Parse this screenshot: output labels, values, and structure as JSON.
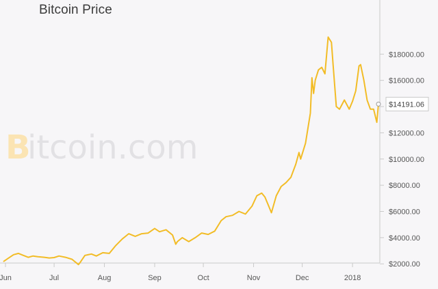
{
  "title": "Bitcoin Price",
  "watermark": {
    "symbol": "B",
    "text": "itcoin.com"
  },
  "colors": {
    "background": "#f7f6f8",
    "line": "#f2bc26",
    "axis": "#c9c9c9",
    "watermark": "#e2e1e4",
    "watermark_symbol": "#fbe4b3"
  },
  "price_tag": "$14191.06",
  "chart_data": {
    "type": "line",
    "title": "Bitcoin Price",
    "xlabel": "",
    "ylabel": "",
    "x_tick_labels": [
      "Jun",
      "Jul",
      "Aug",
      "Sep",
      "Oct",
      "Nov",
      "Dec",
      "2018"
    ],
    "y_tick_labels": [
      "$2000.00",
      "$4000.00",
      "$6000.00",
      "$8000.00",
      "$10000.00",
      "$12000.00",
      "$14000.00",
      "$16000.00",
      "$18000.00"
    ],
    "y_ticks": [
      2000,
      4000,
      6000,
      8000,
      10000,
      12000,
      14000,
      16000,
      18000
    ],
    "x_range": [
      "2017-06-01",
      "2018-01-17"
    ],
    "ylim": [
      0,
      19600
    ],
    "grid": false,
    "legend": "none",
    "series": [
      {
        "x": [
          "2017-05-31",
          "2017-06-03",
          "2017-06-06",
          "2017-06-09",
          "2017-06-12",
          "2017-06-15",
          "2017-06-18",
          "2017-06-21",
          "2017-06-25",
          "2017-06-28",
          "2017-07-01",
          "2017-07-04",
          "2017-07-08",
          "2017-07-12",
          "2017-07-16",
          "2017-07-17",
          "2017-07-20",
          "2017-07-24",
          "2017-07-27",
          "2017-07-31",
          "2017-08-04",
          "2017-08-08",
          "2017-08-12",
          "2017-08-16",
          "2017-08-20",
          "2017-08-24",
          "2017-08-28",
          "2017-09-01",
          "2017-09-04",
          "2017-09-08",
          "2017-09-12",
          "2017-09-14",
          "2017-09-15",
          "2017-09-18",
          "2017-09-22",
          "2017-09-26",
          "2017-09-30",
          "2017-10-04",
          "2017-10-08",
          "2017-10-12",
          "2017-10-15",
          "2017-10-19",
          "2017-10-23",
          "2017-10-27",
          "2017-10-31",
          "2017-11-03",
          "2017-11-06",
          "2017-11-08",
          "2017-11-10",
          "2017-11-12",
          "2017-11-15",
          "2017-11-18",
          "2017-11-21",
          "2017-11-24",
          "2017-11-27",
          "2017-11-29",
          "2017-11-30",
          "2017-12-03",
          "2017-12-06",
          "2017-12-07",
          "2017-12-08",
          "2017-12-09",
          "2017-12-11",
          "2017-12-13",
          "2017-12-15",
          "2017-12-17",
          "2017-12-19",
          "2017-12-20",
          "2017-12-22",
          "2017-12-24",
          "2017-12-27",
          "2017-12-30",
          "2018-01-01",
          "2018-01-03",
          "2018-01-05",
          "2018-01-06",
          "2018-01-08",
          "2018-01-10",
          "2018-01-12",
          "2018-01-14",
          "2018-01-16",
          "2018-01-17"
        ],
        "y": [
          2200,
          2450,
          2700,
          2800,
          2650,
          2500,
          2600,
          2550,
          2500,
          2450,
          2480,
          2600,
          2500,
          2350,
          1950,
          2100,
          2650,
          2750,
          2600,
          2850,
          2800,
          3400,
          3900,
          4300,
          4100,
          4300,
          4350,
          4700,
          4450,
          4600,
          4200,
          3500,
          3700,
          4000,
          3700,
          4000,
          4350,
          4250,
          4500,
          5300,
          5600,
          5700,
          6000,
          5800,
          6400,
          7200,
          7400,
          7100,
          6500,
          5900,
          7200,
          7900,
          8200,
          8600,
          9600,
          10500,
          10000,
          11200,
          13500,
          16200,
          15000,
          16000,
          16800,
          17000,
          16500,
          19300,
          18900,
          17200,
          14000,
          13800,
          14500,
          13800,
          14400,
          15200,
          17100,
          17200,
          16000,
          14500,
          13800,
          13800,
          12800,
          14191
        ]
      }
    ]
  }
}
